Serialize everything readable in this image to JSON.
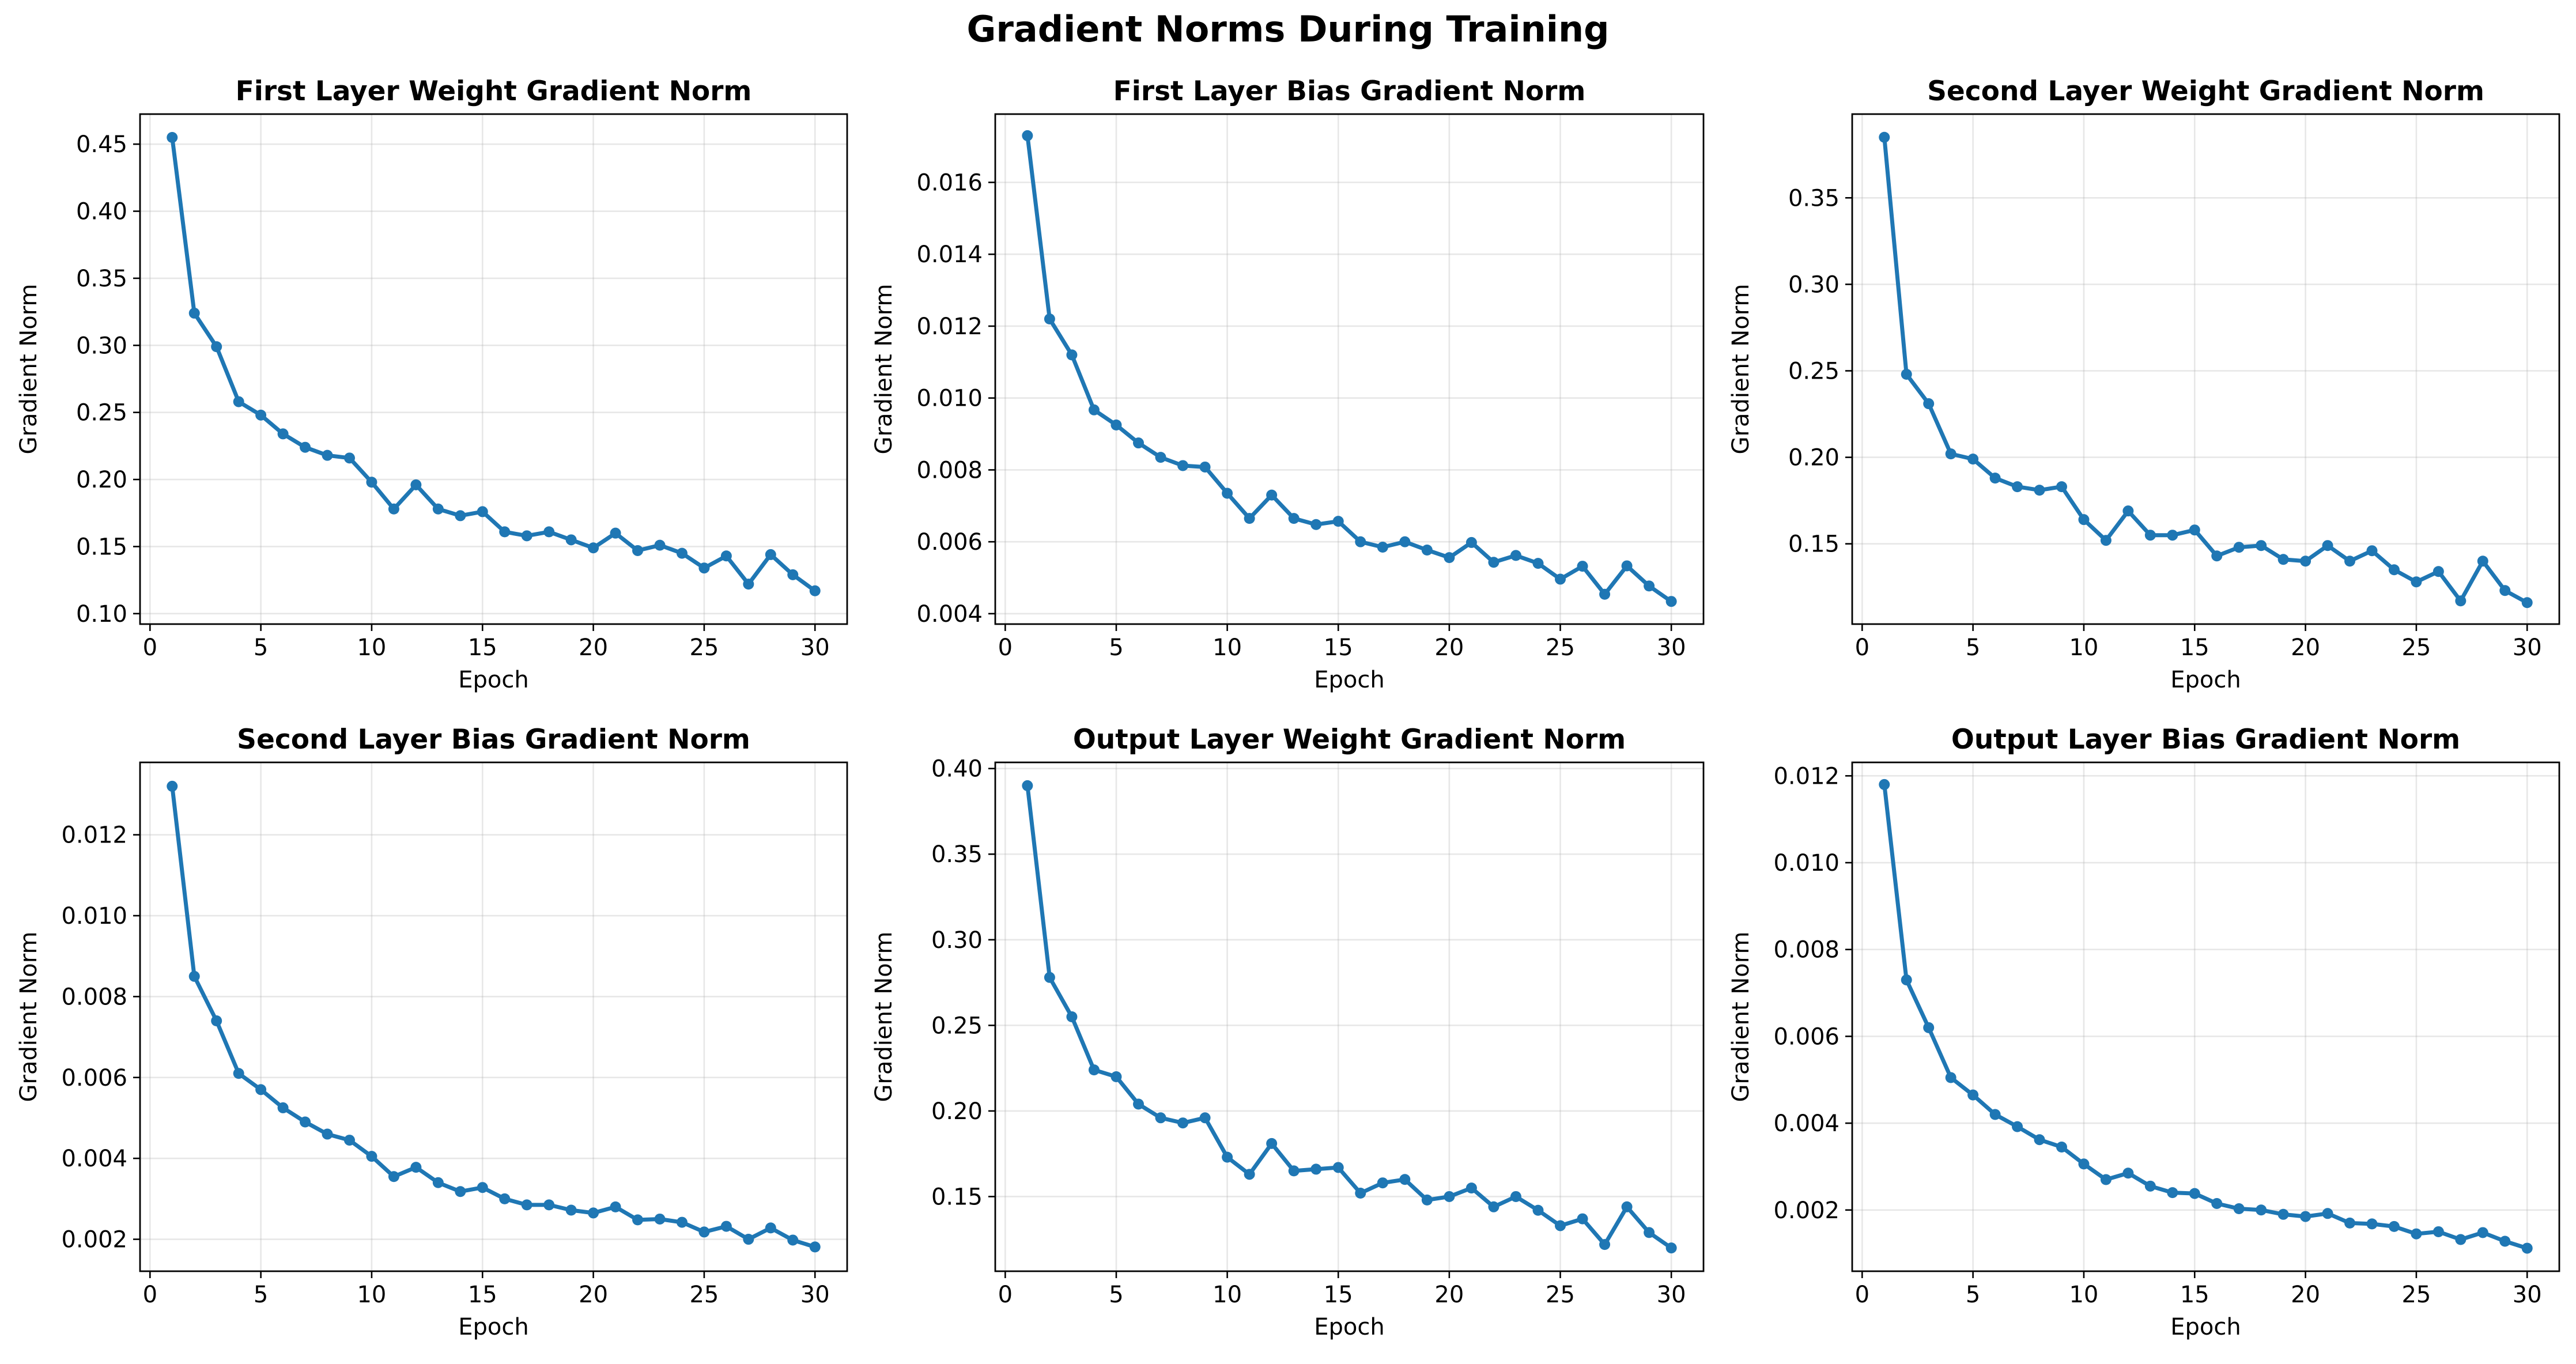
{
  "figure": {
    "title": "Gradient Norms During Training",
    "line_color": "#1f77b4",
    "grid_color": "#b0b0b0"
  },
  "chart_data": [
    {
      "type": "line",
      "title": "First Layer Weight Gradient Norm",
      "xlabel": "Epoch",
      "ylabel": "Gradient Norm",
      "xlim": [
        -0.45,
        31.45
      ],
      "ylim": [
        0.0922,
        0.4724
      ],
      "xticks": [
        0,
        5,
        10,
        15,
        20,
        25,
        30
      ],
      "yticks": [
        0.1,
        0.15,
        0.2,
        0.25,
        0.3,
        0.35,
        0.4,
        0.45
      ],
      "ytick_labels": [
        "0.10",
        "0.15",
        "0.20",
        "0.25",
        "0.30",
        "0.35",
        "0.40",
        "0.45"
      ],
      "grid": true,
      "x": [
        1,
        2,
        3,
        4,
        5,
        6,
        7,
        8,
        9,
        10,
        11,
        12,
        13,
        14,
        15,
        16,
        17,
        18,
        19,
        20,
        21,
        22,
        23,
        24,
        25,
        26,
        27,
        28,
        29,
        30
      ],
      "series": [
        {
          "values": [
            0.455,
            0.324,
            0.299,
            0.258,
            0.248,
            0.234,
            0.224,
            0.218,
            0.216,
            0.198,
            0.178,
            0.196,
            0.178,
            0.173,
            0.176,
            0.161,
            0.158,
            0.161,
            0.155,
            0.149,
            0.16,
            0.147,
            0.151,
            0.145,
            0.134,
            0.143,
            0.122,
            0.144,
            0.129,
            0.117
          ]
        }
      ]
    },
    {
      "type": "line",
      "title": "First Layer Bias Gradient Norm",
      "xlabel": "Epoch",
      "ylabel": "Gradient Norm",
      "xlim": [
        -0.45,
        31.45
      ],
      "ylim": [
        0.00371,
        0.0179
      ],
      "xticks": [
        0,
        5,
        10,
        15,
        20,
        25,
        30
      ],
      "yticks": [
        0.004,
        0.006,
        0.008,
        0.01,
        0.012,
        0.014,
        0.016
      ],
      "ytick_labels": [
        "0.004",
        "0.006",
        "0.008",
        "0.010",
        "0.012",
        "0.014",
        "0.016"
      ],
      "grid": true,
      "x": [
        1,
        2,
        3,
        4,
        5,
        6,
        7,
        8,
        9,
        10,
        11,
        12,
        13,
        14,
        15,
        16,
        17,
        18,
        19,
        20,
        21,
        22,
        23,
        24,
        25,
        26,
        27,
        28,
        29,
        30
      ],
      "series": [
        {
          "values": [
            0.0173,
            0.0122,
            0.0112,
            0.00967,
            0.00925,
            0.00875,
            0.00835,
            0.00812,
            0.00808,
            0.00735,
            0.00665,
            0.0073,
            0.00665,
            0.00648,
            0.00657,
            0.006,
            0.00585,
            0.006,
            0.00577,
            0.00556,
            0.00598,
            0.00543,
            0.00562,
            0.0054,
            0.00496,
            0.00532,
            0.00454,
            0.00533,
            0.00477,
            0.00434
          ]
        }
      ]
    },
    {
      "type": "line",
      "title": "Second Layer Weight Gradient Norm",
      "xlabel": "Epoch",
      "ylabel": "Gradient Norm",
      "xlim": [
        -0.45,
        31.45
      ],
      "ylim": [
        0.1036,
        0.3984
      ],
      "xticks": [
        0,
        5,
        10,
        15,
        20,
        25,
        30
      ],
      "yticks": [
        0.15,
        0.2,
        0.25,
        0.3,
        0.35
      ],
      "ytick_labels": [
        "0.15",
        "0.20",
        "0.25",
        "0.30",
        "0.35"
      ],
      "grid": true,
      "x": [
        1,
        2,
        3,
        4,
        5,
        6,
        7,
        8,
        9,
        10,
        11,
        12,
        13,
        14,
        15,
        16,
        17,
        18,
        19,
        20,
        21,
        22,
        23,
        24,
        25,
        26,
        27,
        28,
        29,
        30
      ],
      "series": [
        {
          "values": [
            0.385,
            0.248,
            0.231,
            0.202,
            0.199,
            0.188,
            0.183,
            0.181,
            0.183,
            0.164,
            0.152,
            0.169,
            0.155,
            0.155,
            0.158,
            0.143,
            0.148,
            0.149,
            0.141,
            0.14,
            0.149,
            0.14,
            0.146,
            0.135,
            0.128,
            0.134,
            0.117,
            0.14,
            0.123,
            0.116
          ]
        }
      ]
    },
    {
      "type": "line",
      "title": "Second Layer Bias Gradient Norm",
      "xlabel": "Epoch",
      "ylabel": "Gradient Norm",
      "xlim": [
        -0.45,
        31.45
      ],
      "ylim": [
        0.00121,
        0.01379
      ],
      "xticks": [
        0,
        5,
        10,
        15,
        20,
        25,
        30
      ],
      "yticks": [
        0.002,
        0.004,
        0.006,
        0.008,
        0.01,
        0.012
      ],
      "ytick_labels": [
        "0.002",
        "0.004",
        "0.006",
        "0.008",
        "0.010",
        "0.012"
      ],
      "grid": true,
      "x": [
        1,
        2,
        3,
        4,
        5,
        6,
        7,
        8,
        9,
        10,
        11,
        12,
        13,
        14,
        15,
        16,
        17,
        18,
        19,
        20,
        21,
        22,
        23,
        24,
        25,
        26,
        27,
        28,
        29,
        30
      ],
      "series": [
        {
          "values": [
            0.0132,
            0.0085,
            0.0074,
            0.0061,
            0.0057,
            0.00525,
            0.0049,
            0.0046,
            0.00445,
            0.00405,
            0.00355,
            0.00378,
            0.0034,
            0.00318,
            0.00328,
            0.003,
            0.00285,
            0.00285,
            0.00272,
            0.00265,
            0.0028,
            0.00248,
            0.0025,
            0.00242,
            0.00218,
            0.00232,
            0.002,
            0.00228,
            0.00198,
            0.00181
          ]
        }
      ]
    },
    {
      "type": "line",
      "title": "Output Layer Weight Gradient Norm",
      "xlabel": "Epoch",
      "ylabel": "Gradient Norm",
      "xlim": [
        -0.45,
        31.45
      ],
      "ylim": [
        0.1064,
        0.4036
      ],
      "xticks": [
        0,
        5,
        10,
        15,
        20,
        25,
        30
      ],
      "yticks": [
        0.15,
        0.2,
        0.25,
        0.3,
        0.35,
        0.4
      ],
      "ytick_labels": [
        "0.15",
        "0.20",
        "0.25",
        "0.30",
        "0.35",
        "0.40"
      ],
      "grid": true,
      "x": [
        1,
        2,
        3,
        4,
        5,
        6,
        7,
        8,
        9,
        10,
        11,
        12,
        13,
        14,
        15,
        16,
        17,
        18,
        19,
        20,
        21,
        22,
        23,
        24,
        25,
        26,
        27,
        28,
        29,
        30
      ],
      "series": [
        {
          "values": [
            0.39,
            0.278,
            0.255,
            0.224,
            0.22,
            0.204,
            0.196,
            0.193,
            0.196,
            0.173,
            0.163,
            0.181,
            0.165,
            0.166,
            0.167,
            0.152,
            0.158,
            0.16,
            0.148,
            0.15,
            0.155,
            0.144,
            0.15,
            0.142,
            0.133,
            0.137,
            0.122,
            0.144,
            0.129,
            0.12
          ]
        }
      ]
    },
    {
      "type": "line",
      "title": "Output Layer Bias Gradient Norm",
      "xlabel": "Epoch",
      "ylabel": "Gradient Norm",
      "xlim": [
        -0.45,
        31.45
      ],
      "ylim": [
        0.00059,
        0.01231
      ],
      "xticks": [
        0,
        5,
        10,
        15,
        20,
        25,
        30
      ],
      "yticks": [
        0.002,
        0.004,
        0.006,
        0.008,
        0.01,
        0.012
      ],
      "ytick_labels": [
        "0.002",
        "0.004",
        "0.006",
        "0.008",
        "0.010",
        "0.012"
      ],
      "grid": true,
      "x": [
        1,
        2,
        3,
        4,
        5,
        6,
        7,
        8,
        9,
        10,
        11,
        12,
        13,
        14,
        15,
        16,
        17,
        18,
        19,
        20,
        21,
        22,
        23,
        24,
        25,
        26,
        27,
        28,
        29,
        30
      ],
      "series": [
        {
          "values": [
            0.0118,
            0.0073,
            0.0062,
            0.00505,
            0.00465,
            0.0042,
            0.00392,
            0.00362,
            0.00345,
            0.00306,
            0.0027,
            0.00285,
            0.00255,
            0.0024,
            0.00238,
            0.00215,
            0.00203,
            0.002,
            0.0019,
            0.00185,
            0.00192,
            0.0017,
            0.00168,
            0.00162,
            0.00145,
            0.0015,
            0.00132,
            0.00148,
            0.00128,
            0.00112
          ]
        }
      ]
    }
  ]
}
